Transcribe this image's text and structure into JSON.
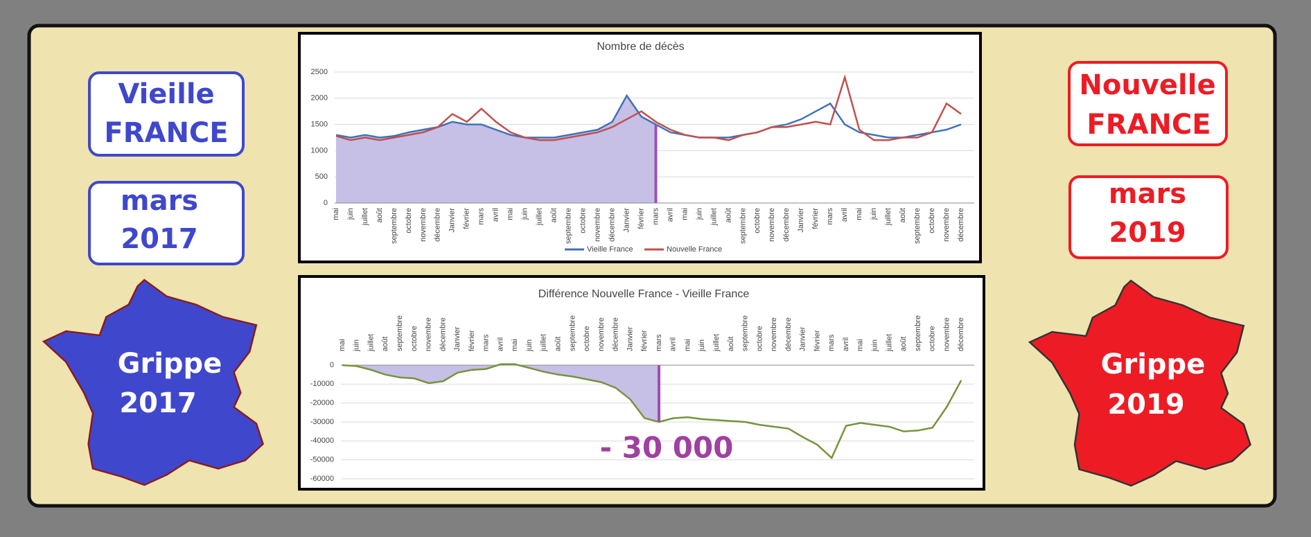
{
  "left_panel": {
    "title_line1": "Vieille",
    "title_line2": "FRANCE",
    "date_line1": "mars",
    "date_line2": "2017",
    "map_line1": "Grippe",
    "map_line2": "2017"
  },
  "right_panel": {
    "title_line1": "Nouvelle",
    "title_line2": "FRANCE",
    "date_line1": "mars",
    "date_line2": "2019",
    "map_line1": "Grippe",
    "map_line2": "2019"
  },
  "chart_data": [
    {
      "type": "line",
      "title": "Nombre de décès",
      "categories": [
        "mai",
        "juin",
        "juillet",
        "août",
        "septembre",
        "octobre",
        "novembre",
        "décembre",
        "Janvier",
        "février",
        "mars",
        "avril",
        "mai",
        "juin",
        "juillet",
        "août",
        "septembre",
        "octobre",
        "novembre",
        "décembre",
        "Janvier",
        "février",
        "mars",
        "avril",
        "mai",
        "juin",
        "juillet",
        "août",
        "septembre",
        "octobre",
        "novembre",
        "décembre",
        "Janvier",
        "février",
        "mars",
        "avril",
        "mai",
        "juin",
        "juillet",
        "août",
        "septembre",
        "octobre",
        "novembre",
        "décembre"
      ],
      "series": [
        {
          "name": "Vieille France",
          "color": "#3f72b8",
          "values": [
            1300,
            1250,
            1300,
            1250,
            1280,
            1350,
            1400,
            1450,
            1550,
            1500,
            1500,
            1400,
            1300,
            1250,
            1250,
            1250,
            1300,
            1350,
            1400,
            1550,
            2050,
            1650,
            1500,
            1350,
            1300,
            1250,
            1250,
            1250,
            1300,
            1350,
            1450,
            1500,
            1600,
            1750,
            1900,
            1500,
            1350,
            1300,
            1250,
            1250,
            1300,
            1350,
            1400,
            1500
          ]
        },
        {
          "name": "Nouvelle France",
          "color": "#c0504d",
          "values": [
            1280,
            1200,
            1250,
            1200,
            1250,
            1300,
            1350,
            1450,
            1700,
            1550,
            1800,
            1550,
            1350,
            1250,
            1200,
            1200,
            1250,
            1300,
            1350,
            1450,
            1600,
            1750,
            1550,
            1400,
            1300,
            1250,
            1250,
            1200,
            1300,
            1350,
            1450,
            1450,
            1500,
            1550,
            1500,
            2400,
            1400,
            1200,
            1200,
            1250,
            1250,
            1350,
            1900,
            1700
          ]
        }
      ],
      "ylim": [
        0,
        2500
      ],
      "yticks": [
        0,
        500,
        1000,
        1500,
        2000,
        2500
      ],
      "grid": true,
      "legend": "bottom"
    },
    {
      "type": "line",
      "title": "Différence Nouvelle France - Vieille France",
      "categories": [
        "mai",
        "juin",
        "juillet",
        "août",
        "septembre",
        "octobre",
        "novembre",
        "décembre",
        "Janvier",
        "février",
        "mars",
        "avril",
        "mai",
        "juin",
        "juillet",
        "août",
        "septembre",
        "octobre",
        "novembre",
        "décembre",
        "Janvier",
        "février",
        "mars",
        "avril",
        "mai",
        "juin",
        "juillet",
        "août",
        "septembre",
        "octobre",
        "novembre",
        "décembre",
        "Janvier",
        "février",
        "mars",
        "avril",
        "mai",
        "juin",
        "juillet",
        "août",
        "septembre",
        "octobre",
        "novembre",
        "décembre"
      ],
      "series": [
        {
          "name": null,
          "color": "#77933c",
          "values": [
            0,
            -500,
            -2500,
            -5000,
            -6500,
            -7000,
            -9500,
            -8500,
            -4000,
            -2500,
            -2000,
            500,
            500,
            -1500,
            -3500,
            -5000,
            -6000,
            -7500,
            -9000,
            -12000,
            -18000,
            -28000,
            -30000,
            -28000,
            -27500,
            -28500,
            -29000,
            -29500,
            -30000,
            -31500,
            -32500,
            -33500,
            -38000,
            -42000,
            -49000,
            -32000,
            -30500,
            -31500,
            -32500,
            -35000,
            -34500,
            -33000,
            -22000,
            -8000
          ]
        }
      ],
      "ylim": [
        -60000,
        0
      ],
      "yticks": [
        -60000,
        -50000,
        -40000,
        -30000,
        -20000,
        -10000,
        0
      ],
      "grid": true,
      "annotation": "- 30 000"
    }
  ]
}
